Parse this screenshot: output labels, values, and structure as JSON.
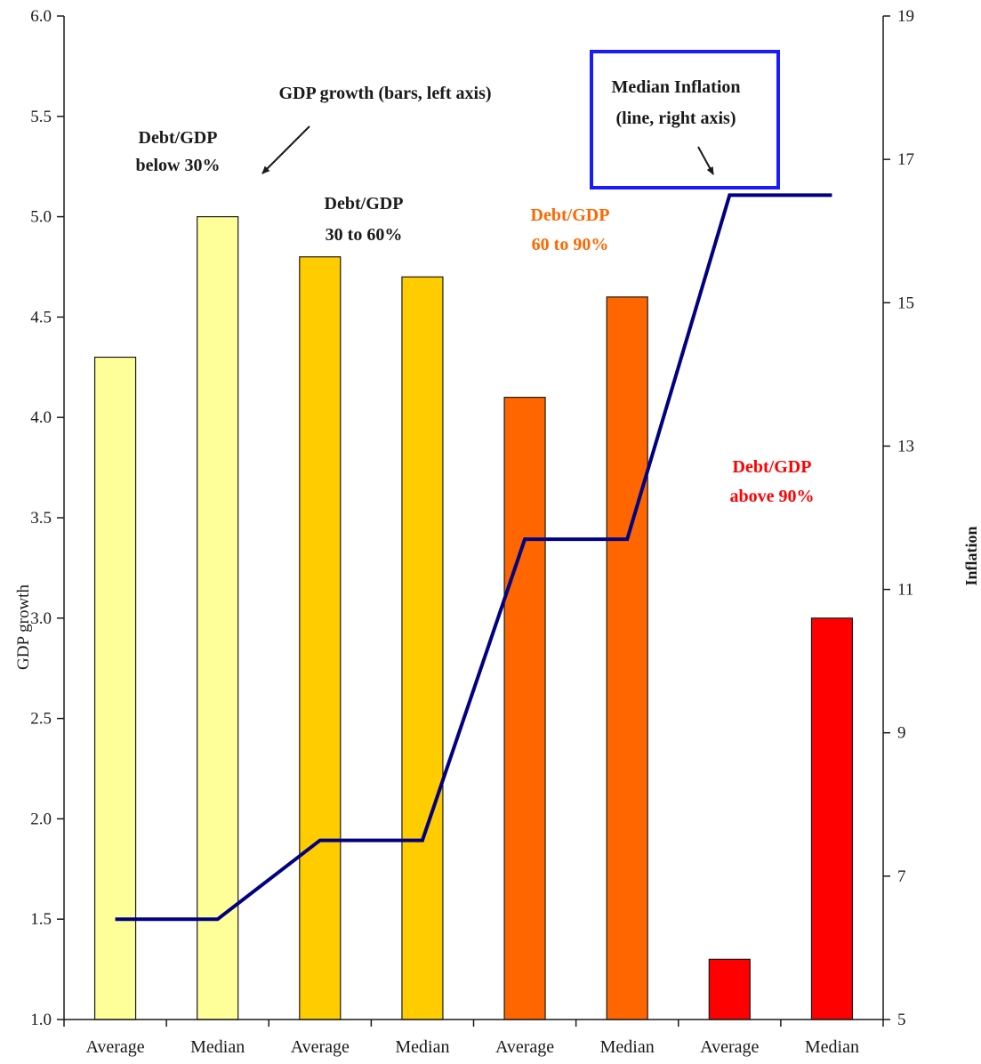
{
  "chart_data": {
    "type": "bar",
    "categories": [
      "Average",
      "Median",
      "Average",
      "Median",
      "Average",
      "Median",
      "Average",
      "Median"
    ],
    "bar_series": {
      "values": [
        4.3,
        5.0,
        4.8,
        4.7,
        4.1,
        4.6,
        1.3,
        3.0
      ],
      "colors": [
        "#ffff99",
        "#ffff99",
        "#ffcc00",
        "#ffcc00",
        "#ff6600",
        "#ff6600",
        "#ff0000",
        "#ff0000"
      ],
      "axis": "left"
    },
    "line_series": {
      "values": [
        6.4,
        6.4,
        7.5,
        7.5,
        11.7,
        11.7,
        16.5,
        16.5
      ],
      "color": "#000080",
      "axis": "right"
    },
    "ylabel": "GDP growth",
    "y2label": "Inflation",
    "ylim": [
      1.0,
      6.0
    ],
    "y2lim": [
      5,
      19
    ],
    "yticks": [
      "1.0",
      "1.5",
      "2.0",
      "2.5",
      "3.0",
      "3.5",
      "4.0",
      "4.5",
      "5.0",
      "5.5",
      "6.0"
    ],
    "y2ticks": [
      "5",
      "7",
      "9",
      "11",
      "13",
      "15",
      "17",
      "19"
    ],
    "grid": false,
    "annotations": {
      "bars_note": "GDP growth (bars, left axis)",
      "line_note_1": "Median Inflation",
      "line_note_2": "(line, right axis)",
      "group1_1": "Debt/GDP",
      "group1_2": "below 30%",
      "group2_1": "Debt/GDP",
      "group2_2": "30 to 60%",
      "group3_1": "Debt/GDP",
      "group3_2": "60 to 90%",
      "group4_1": "Debt/GDP",
      "group4_2": "above 90%"
    },
    "annotation_colors": {
      "group1": "#1a1a1a",
      "group2": "#1a1a1a",
      "group3": "#ff6600",
      "group4": "#ff0000",
      "highlight_box": "#1a1aff"
    }
  }
}
